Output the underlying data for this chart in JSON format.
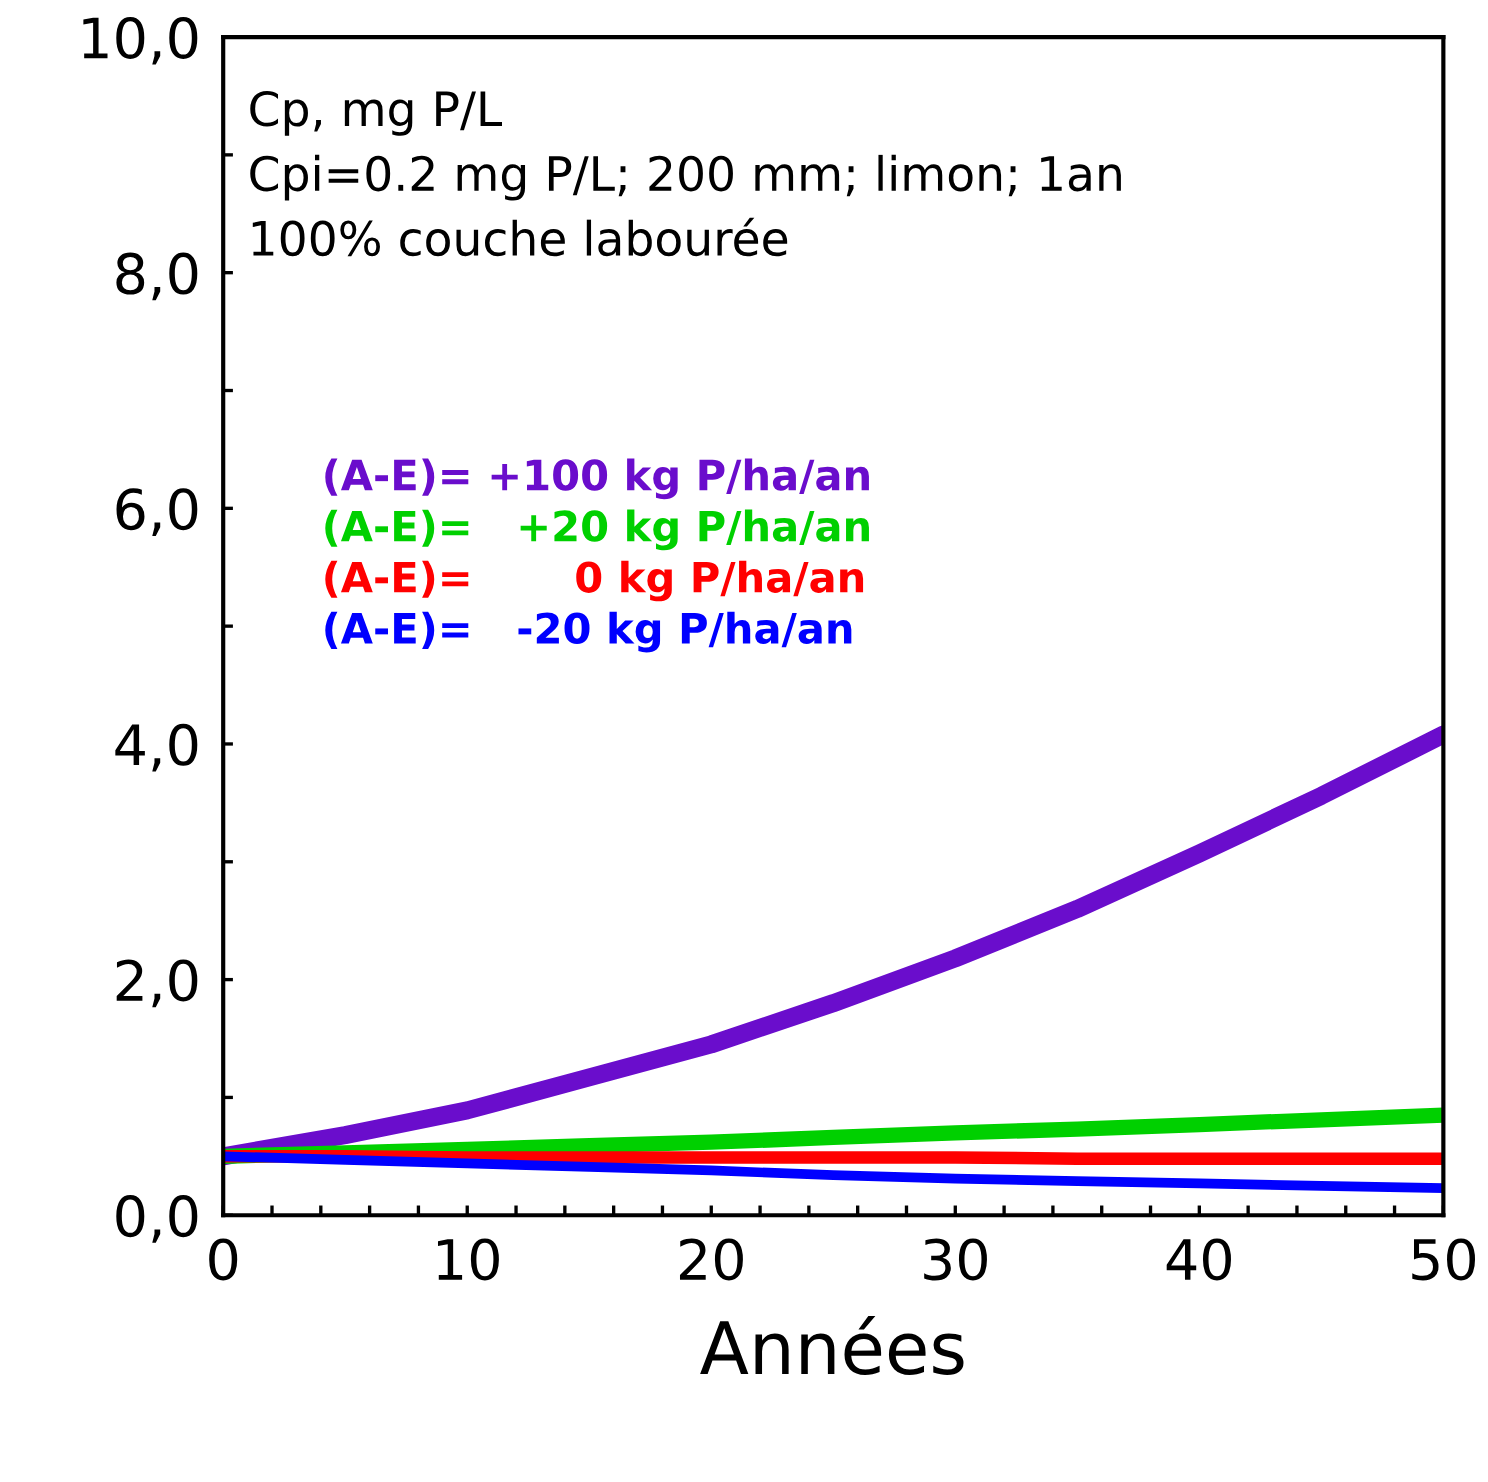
{
  "chart_data": {
    "type": "line",
    "xlabel": "Années",
    "annotations": [
      "Cp, mg P/L",
      "Cpi=0.2 mg P/L; 200 mm; limon; 1an",
      "100% couche labourée"
    ],
    "x": [
      0,
      5,
      10,
      15,
      20,
      25,
      30,
      35,
      40,
      45,
      50
    ],
    "series": [
      {
        "name": "(A-E)= +100 kg P/ha/an",
        "color": "#6a0dcc",
        "values": [
          0.5,
          0.68,
          0.89,
          1.17,
          1.45,
          1.8,
          2.18,
          2.6,
          3.07,
          3.56,
          4.08
        ]
      },
      {
        "name": "(A-E)=   +20 kg P/ha/an",
        "color": "#00d000",
        "values": [
          0.5,
          0.53,
          0.56,
          0.59,
          0.62,
          0.66,
          0.7,
          0.73,
          0.77,
          0.81,
          0.85
        ]
      },
      {
        "name": "(A-E)=       0 kg P/ha/an",
        "color": "#ff0000",
        "values": [
          0.5,
          0.5,
          0.49,
          0.49,
          0.49,
          0.49,
          0.49,
          0.48,
          0.48,
          0.48,
          0.48
        ]
      },
      {
        "name": "(A-E)=   -20 kg P/ha/an",
        "color": "#0000ff",
        "values": [
          0.5,
          0.47,
          0.44,
          0.41,
          0.38,
          0.34,
          0.31,
          0.29,
          0.27,
          0.25,
          0.23
        ]
      }
    ],
    "xlim": [
      0,
      50
    ],
    "ylim": [
      0,
      10
    ],
    "xticks": [
      0,
      {
        "value": 2,
        "label": null
      },
      {
        "value": 4,
        "label": null
      },
      {
        "value": 6,
        "label": null
      },
      {
        "value": 8,
        "label": null
      },
      10,
      {
        "value": 12,
        "label": null
      },
      {
        "value": 14,
        "label": null
      },
      {
        "value": 16,
        "label": null
      },
      {
        "value": 18,
        "label": null
      },
      20,
      {
        "value": 22,
        "label": null
      },
      {
        "value": 24,
        "label": null
      },
      {
        "value": 26,
        "label": null
      },
      {
        "value": 28,
        "label": null
      },
      30,
      {
        "value": 32,
        "label": null
      },
      {
        "value": 34,
        "label": null
      },
      {
        "value": 36,
        "label": null
      },
      {
        "value": 38,
        "label": null
      },
      40,
      {
        "value": 42,
        "label": null
      },
      {
        "value": 44,
        "label": null
      },
      {
        "value": 46,
        "label": null
      },
      {
        "value": 48,
        "label": null
      },
      50
    ],
    "yticks": [
      {
        "value": 0,
        "label": "0,0"
      },
      {
        "value": 1,
        "label": null
      },
      {
        "value": 2,
        "label": "2,0"
      },
      {
        "value": 3,
        "label": null
      },
      {
        "value": 4,
        "label": "4,0"
      },
      {
        "value": 5,
        "label": null
      },
      {
        "value": 6,
        "label": "6,0"
      },
      {
        "value": 7,
        "label": null
      },
      {
        "value": 8,
        "label": "8,0"
      },
      {
        "value": 9,
        "label": null
      },
      {
        "value": 10,
        "label": "10,0"
      }
    ],
    "grid": false,
    "legend": "center left",
    "marker": "none",
    "line_style": "solid"
  }
}
